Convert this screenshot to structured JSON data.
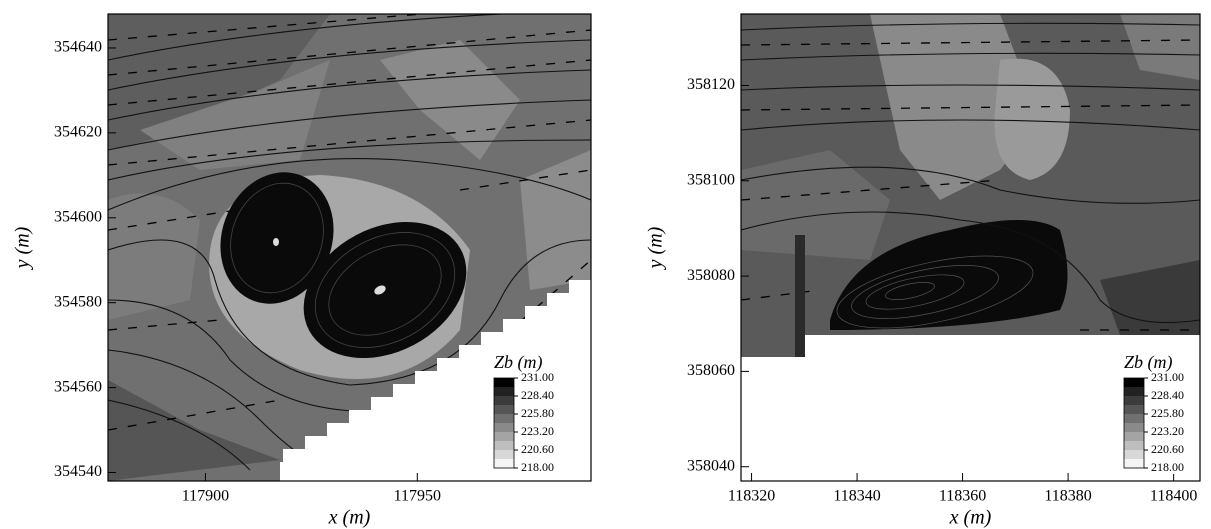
{
  "chart_data": [
    {
      "type": "contour",
      "xlabel": "x (m)",
      "ylabel": "y (m)",
      "xlim": [
        117877,
        117991
      ],
      "ylim": [
        354538,
        354648
      ],
      "xticks": [
        117900,
        117950
      ],
      "yticks": [
        354540,
        354560,
        354580,
        354600,
        354620,
        354640
      ],
      "colorbar": {
        "title": "Zb (m)",
        "lim": [
          218,
          231
        ],
        "ticks": [
          {
            "value": 231,
            "label": "231.00"
          },
          {
            "value": 228.4,
            "label": "228.40"
          },
          {
            "value": 225.8,
            "label": "225.80"
          },
          {
            "value": 223.2,
            "label": "223.20"
          },
          {
            "value": 220.6,
            "label": "220.60"
          },
          {
            "value": 218,
            "label": "218.00"
          }
        ]
      }
    },
    {
      "type": "contour",
      "xlabel": "x (m)",
      "ylabel": "y (m)",
      "xlim": [
        118318,
        118405
      ],
      "ylim": [
        358037,
        358135
      ],
      "xticks": [
        118320,
        118340,
        118360,
        118380,
        118400
      ],
      "yticks": [
        358040,
        358060,
        358080,
        358100,
        358120
      ],
      "colorbar": {
        "title": "Zb (m)",
        "lim": [
          218,
          231
        ],
        "ticks": [
          {
            "value": 231,
            "label": "231.00"
          },
          {
            "value": 228.4,
            "label": "228.40"
          },
          {
            "value": 225.8,
            "label": "225.80"
          },
          {
            "value": 223.2,
            "label": "223.20"
          },
          {
            "value": 220.6,
            "label": "220.60"
          },
          {
            "value": 218,
            "label": "218.00"
          }
        ]
      }
    }
  ]
}
